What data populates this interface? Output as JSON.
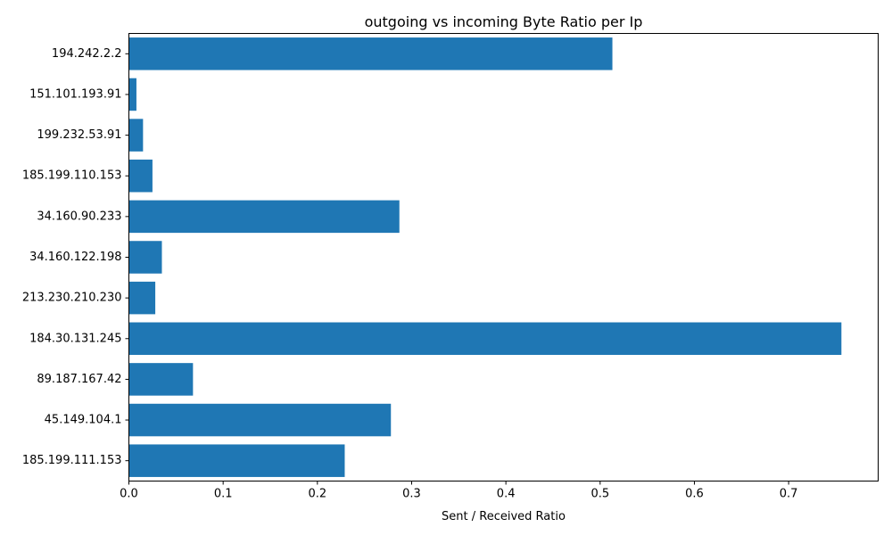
{
  "chart_data": {
    "type": "bar",
    "orientation": "horizontal",
    "title": "outgoing vs incoming Byte Ratio per Ip",
    "xlabel": "Sent / Received Ratio",
    "ylabel": "",
    "categories": [
      "194.242.2.2",
      "151.101.193.91",
      "199.232.53.91",
      "185.199.110.153",
      "34.160.90.233",
      "34.160.122.198",
      "213.230.210.230",
      "184.30.131.245",
      "89.187.167.42",
      "45.149.104.1",
      "185.199.111.153"
    ],
    "values": [
      0.513,
      0.008,
      0.015,
      0.025,
      0.287,
      0.035,
      0.028,
      0.756,
      0.068,
      0.278,
      0.229
    ],
    "xlim": [
      0,
      0.795
    ],
    "xticks": [
      0.0,
      0.1,
      0.2,
      0.3,
      0.4,
      0.5,
      0.6,
      0.7
    ],
    "xtick_labels": [
      "0.0",
      "0.1",
      "0.2",
      "0.3",
      "0.4",
      "0.5",
      "0.6",
      "0.7"
    ],
    "grid": false,
    "bar_color": "#1f77b4"
  }
}
